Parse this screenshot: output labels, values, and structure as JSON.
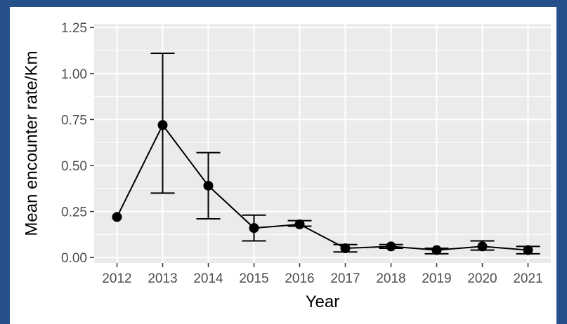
{
  "chart_data": {
    "type": "line",
    "title": "",
    "xlabel": "Year",
    "ylabel": "Mean encounter rate/Km",
    "x": [
      "2012",
      "2013",
      "2014",
      "2015",
      "2016",
      "2017",
      "2018",
      "2019",
      "2020",
      "2021"
    ],
    "series": [
      {
        "values": [
          0.22,
          0.72,
          0.39,
          0.16,
          0.18,
          0.05,
          0.06,
          0.04,
          0.06,
          0.04
        ],
        "error_low": [
          null,
          0.35,
          0.21,
          0.09,
          0.17,
          0.03,
          0.05,
          0.02,
          0.04,
          0.02
        ],
        "error_high": [
          null,
          1.11,
          0.57,
          0.23,
          0.2,
          0.07,
          0.07,
          0.05,
          0.09,
          0.06
        ]
      }
    ],
    "ylim": [
      -0.03,
      1.27
    ],
    "yticks": [
      "0.00",
      "0.25",
      "0.50",
      "0.75",
      "1.00",
      "1.25"
    ],
    "ytick_values": [
      0,
      0.25,
      0.5,
      0.75,
      1.0,
      1.25
    ],
    "grid": true,
    "colors": {
      "panel_background": "#ebebeb",
      "grid": "#ffffff",
      "line": "#000000",
      "border": "#26508a"
    }
  }
}
